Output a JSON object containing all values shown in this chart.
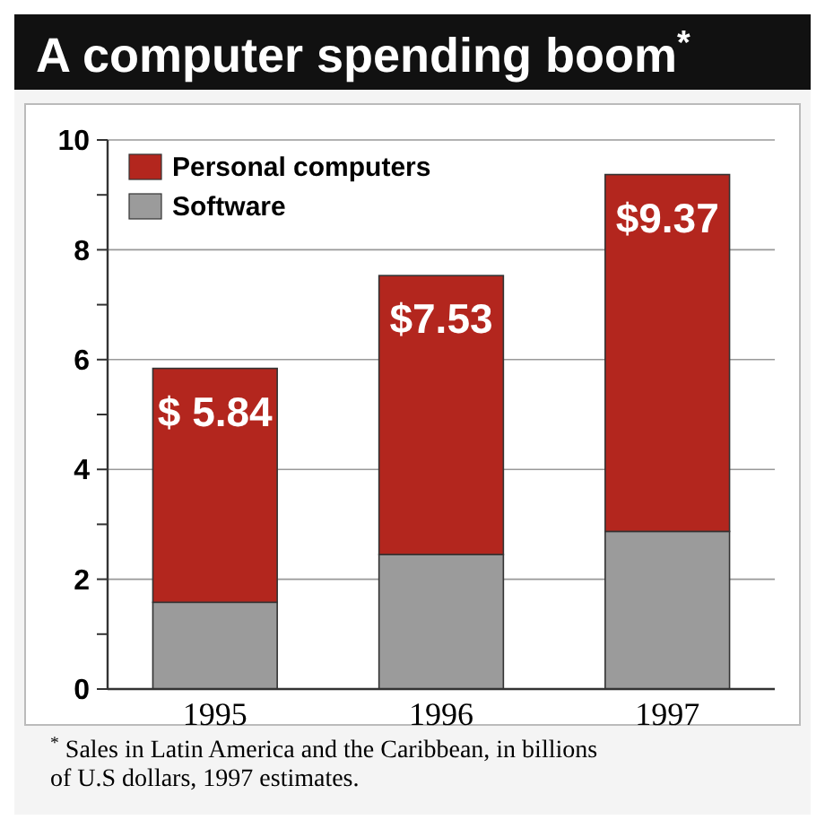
{
  "chart_data": {
    "type": "bar",
    "stacked": true,
    "title": "A computer spending boom$^{*}$",
    "categories": [
      "1995",
      "1996",
      "1997"
    ],
    "series": [
      {
        "name": "Software",
        "color": "#9b9b9b",
        "values": [
          1.58,
          2.45,
          2.87
        ]
      },
      {
        "name": "Personal computers",
        "color": "#b3261e",
        "values": [
          4.26,
          5.08,
          6.5
        ]
      }
    ],
    "totals": [
      "$ 5.84",
      "$7.53",
      "$9.37"
    ],
    "ylim": [
      0,
      10
    ],
    "yticks": [
      0,
      {
        "value": 1,
        "label": null
      },
      2,
      {
        "value": 3,
        "label": null
      },
      4,
      {
        "value": 5,
        "label": null
      },
      6,
      {
        "value": 7,
        "label": null
      },
      8,
      {
        "value": 9,
        "label": null
      },
      10
    ],
    "grid": "y",
    "legend": "top left",
    "annotations": [
      "$^{*}$ Sales in Latin America and the Caribbean, in billions of U.S dollars, 1997 estimates."
    ]
  }
}
